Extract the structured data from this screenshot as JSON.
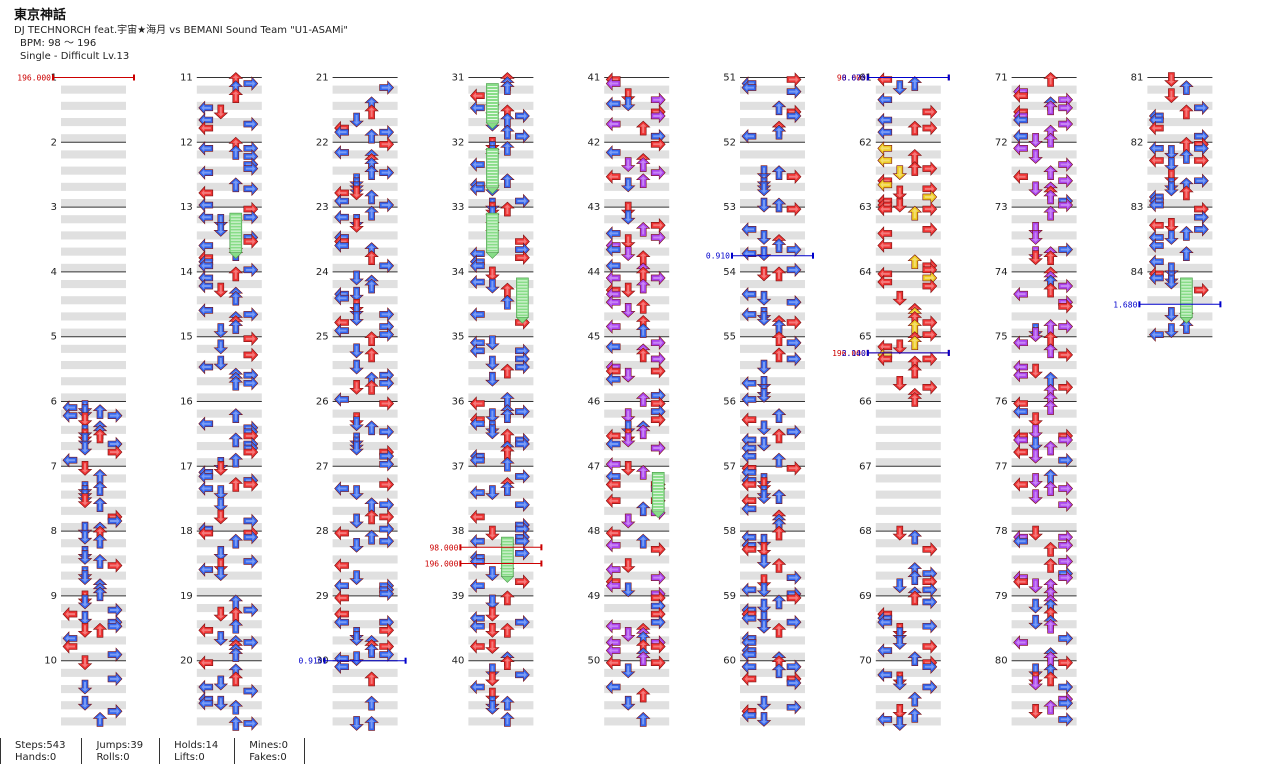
{
  "song": {
    "title": "東京神話",
    "artist": "DJ TECHNORCH feat.宇宙★海月 vs BEMANI Sound Team \"U1-ASAMi\"",
    "bpm_text": "BPM: 98 ～ 196",
    "chart_text": "Single - Difficult  Lv.13"
  },
  "measures": {
    "count": 84,
    "per_column": 10,
    "numbers": [
      "1",
      "2",
      "3",
      "4",
      "5",
      "6",
      "7",
      "8",
      "9",
      "10",
      "11",
      "12",
      "13",
      "14",
      "15",
      "16",
      "17",
      "18",
      "19",
      "20",
      "21",
      "22",
      "23",
      "24",
      "25",
      "26",
      "27",
      "28",
      "29",
      "30",
      "31",
      "32",
      "33",
      "34",
      "35",
      "36",
      "37",
      "38",
      "39",
      "40",
      "41",
      "42",
      "43",
      "44",
      "45",
      "46",
      "47",
      "48",
      "49",
      "50",
      "51",
      "52",
      "53",
      "54",
      "55",
      "56",
      "57",
      "58",
      "59",
      "60",
      "61",
      "62",
      "63",
      "64",
      "65",
      "66",
      "67",
      "68",
      "69",
      "70",
      "71",
      "72",
      "73",
      "74",
      "75",
      "76",
      "77",
      "78",
      "79",
      "80",
      "81",
      "82",
      "83",
      "84"
    ]
  },
  "bpm_changes": [
    {
      "measure": 1,
      "beat": 0,
      "label": "196.000"
    },
    {
      "measure": 38,
      "beat": 1,
      "label": "98.000"
    },
    {
      "measure": 38,
      "beat": 2,
      "label": "196.000"
    },
    {
      "measure": 61,
      "beat": 0,
      "label": "98.000"
    },
    {
      "measure": 65,
      "beat": 1,
      "label": "196.000"
    }
  ],
  "speed_changes": [
    {
      "measure": 30,
      "beat": 0,
      "label": "0.910"
    },
    {
      "measure": 53,
      "beat": 3,
      "label": "0.910"
    },
    {
      "measure": 61,
      "beat": 0,
      "label": "0.670"
    },
    {
      "measure": 65,
      "beat": 1,
      "label": "2.140"
    },
    {
      "measure": 84,
      "beat": 2,
      "label": "1.680"
    }
  ],
  "colors": {
    "quarter": "#ee3333",
    "eighth": "#3366ee",
    "sixteenth": "#aa44ee",
    "triplet": "#eecc22",
    "hold": "#88dd88",
    "bpm": "#cc0000",
    "speed": "#0000cc",
    "band": "#e0e0e0"
  },
  "stats": {
    "steps": "Steps:543",
    "jumps": "Jumps:39",
    "holds": "Holds:14",
    "mines": "Mines:0",
    "hands": "Hands:0",
    "rolls": "Rolls:0",
    "lifts": "Lifts:0",
    "fakes": "Fakes:0"
  }
}
